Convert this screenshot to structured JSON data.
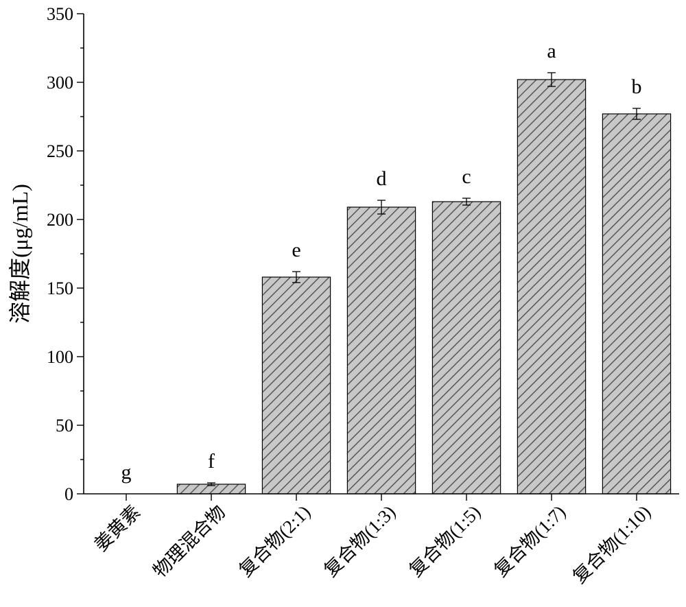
{
  "chart_data": {
    "type": "bar",
    "title": "",
    "xlabel": "",
    "ylabel": "溶解度(μg/mL)",
    "categories": [
      "姜黄素",
      "物理混合物",
      "复合物(2:1)",
      "复合物(1:3)",
      "复合物(1:5)",
      "复合物(1:7)",
      "复合物(1:10)"
    ],
    "values": [
      0,
      7,
      158,
      209,
      213,
      302,
      277
    ],
    "error": [
      0,
      1,
      4,
      5,
      2.5,
      5,
      4
    ],
    "significance_letters": [
      "g",
      "f",
      "e",
      "d",
      "c",
      "a",
      "b"
    ],
    "ylim": [
      0,
      350
    ],
    "yticks": [
      0,
      50,
      100,
      150,
      200,
      250,
      300,
      350
    ],
    "grid": false,
    "legend": false,
    "colors": {
      "bar_fill": "#c8c8c8",
      "hatch": "#444444",
      "outline": "#000000"
    }
  }
}
